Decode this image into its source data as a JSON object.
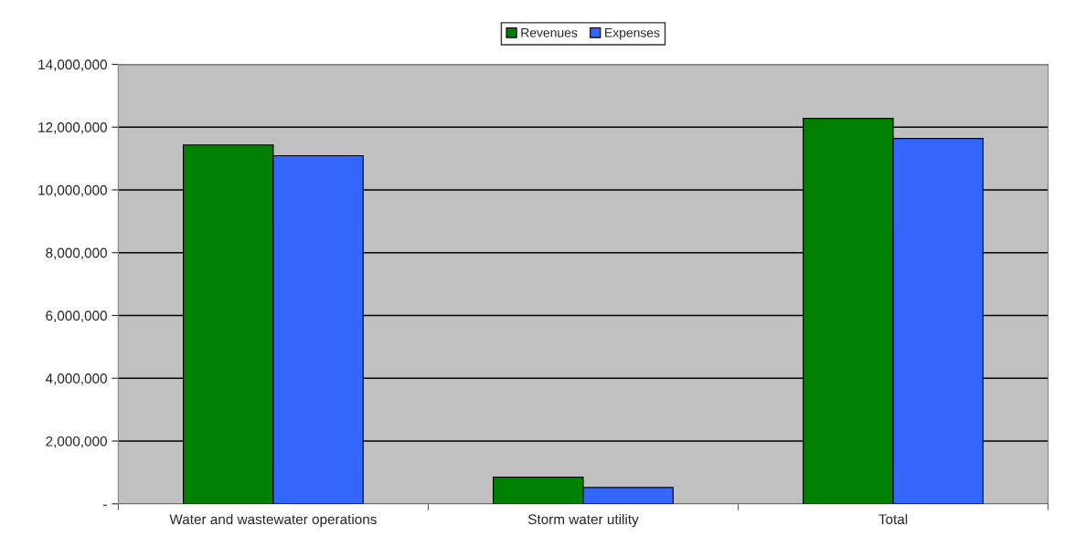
{
  "chart_data": {
    "type": "bar",
    "categories": [
      "Water and wastewater operations",
      "Storm water utility",
      "Total"
    ],
    "series": [
      {
        "name": "Revenues",
        "color": "#008000",
        "values": [
          11430000,
          850000,
          12280000
        ]
      },
      {
        "name": "Expenses",
        "color": "#3366ff",
        "values": [
          11090000,
          520000,
          11640000
        ]
      }
    ],
    "ylim": [
      0,
      14000000
    ],
    "yticks": [
      {
        "value": 0,
        "label": "-"
      },
      {
        "value": 2000000,
        "label": "2,000,000"
      },
      {
        "value": 4000000,
        "label": "4,000,000"
      },
      {
        "value": 6000000,
        "label": "6,000,000"
      },
      {
        "value": 8000000,
        "label": "8,000,000"
      },
      {
        "value": 10000000,
        "label": "10,000,000"
      },
      {
        "value": 12000000,
        "label": "12,000,000"
      },
      {
        "value": 14000000,
        "label": "14,000,000"
      }
    ],
    "grid": "y",
    "legend": "top"
  }
}
